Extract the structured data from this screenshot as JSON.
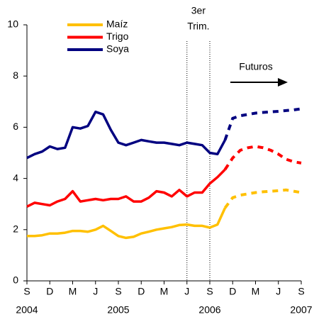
{
  "chart_data": {
    "type": "line",
    "categories": [
      "S",
      null,
      null,
      "D",
      null,
      null,
      "M",
      null,
      null,
      "J",
      null,
      null,
      "S",
      null,
      null,
      "D",
      null,
      null,
      "M",
      null,
      null,
      "J",
      null,
      null,
      "S",
      null,
      null,
      "D",
      null,
      null,
      "M",
      null,
      null,
      "J",
      null,
      null,
      "S"
    ],
    "year_ticks": [
      {
        "value": 0,
        "label": "2004"
      },
      {
        "value": 12,
        "label": "2005"
      },
      {
        "value": 24,
        "label": "2006"
      },
      {
        "value": 36,
        "label": "2007"
      }
    ],
    "ylim": [
      0,
      10
    ],
    "yticks": [
      0,
      2,
      4,
      6,
      8,
      10
    ],
    "legend": "top-left",
    "series": [
      {
        "name": "Maíz",
        "color": "#ffc000",
        "values": [
          1.75,
          1.75,
          1.78,
          1.85,
          1.85,
          1.88,
          1.95,
          1.95,
          1.92,
          2.0,
          2.15,
          1.95,
          1.75,
          1.68,
          1.72,
          1.85,
          1.92,
          2.0,
          2.05,
          2.1,
          2.18,
          2.2,
          2.15,
          2.15,
          2.08,
          2.2,
          2.85,
          null,
          null,
          null,
          null,
          null,
          null,
          null,
          null,
          null,
          null
        ],
        "forecast": [
          null,
          null,
          null,
          null,
          null,
          null,
          null,
          null,
          null,
          null,
          null,
          null,
          null,
          null,
          null,
          null,
          null,
          null,
          null,
          null,
          null,
          null,
          null,
          null,
          null,
          null,
          2.85,
          3.25,
          3.35,
          3.4,
          3.45,
          3.48,
          3.5,
          3.52,
          3.55,
          3.5,
          3.45
        ]
      },
      {
        "name": "Trigo",
        "color": "#ff0000",
        "values": [
          2.9,
          3.05,
          3.0,
          2.95,
          3.1,
          3.2,
          3.5,
          3.1,
          3.15,
          3.2,
          3.15,
          3.2,
          3.2,
          3.3,
          3.1,
          3.1,
          3.25,
          3.5,
          3.45,
          3.3,
          3.55,
          3.3,
          3.45,
          3.45,
          3.8,
          4.05,
          4.35,
          null,
          null,
          null,
          null,
          null,
          null,
          null,
          null,
          null,
          null
        ],
        "forecast": [
          null,
          null,
          null,
          null,
          null,
          null,
          null,
          null,
          null,
          null,
          null,
          null,
          null,
          null,
          null,
          null,
          null,
          null,
          null,
          null,
          null,
          null,
          null,
          null,
          null,
          null,
          4.35,
          4.8,
          5.1,
          5.2,
          5.25,
          5.2,
          5.1,
          4.95,
          4.75,
          4.65,
          4.6
        ]
      },
      {
        "name": "Soya",
        "color": "#000080",
        "values": [
          4.8,
          4.95,
          5.05,
          5.25,
          5.15,
          5.2,
          6.0,
          5.95,
          6.05,
          6.6,
          6.5,
          5.9,
          5.4,
          5.3,
          5.4,
          5.5,
          5.45,
          5.4,
          5.4,
          5.35,
          5.3,
          5.4,
          5.35,
          5.3,
          5.0,
          4.95,
          5.5,
          null,
          null,
          null,
          null,
          null,
          null,
          null,
          null,
          null,
          null
        ],
        "forecast": [
          null,
          null,
          null,
          null,
          null,
          null,
          null,
          null,
          null,
          null,
          null,
          null,
          null,
          null,
          null,
          null,
          null,
          null,
          null,
          null,
          null,
          null,
          null,
          null,
          null,
          null,
          5.5,
          6.35,
          6.45,
          6.5,
          6.55,
          6.58,
          6.6,
          6.62,
          6.65,
          6.68,
          6.72
        ]
      }
    ],
    "period_lines": [
      21,
      24
    ],
    "period_label": [
      "3er",
      "Trim."
    ],
    "futures_label": "Futuros"
  }
}
